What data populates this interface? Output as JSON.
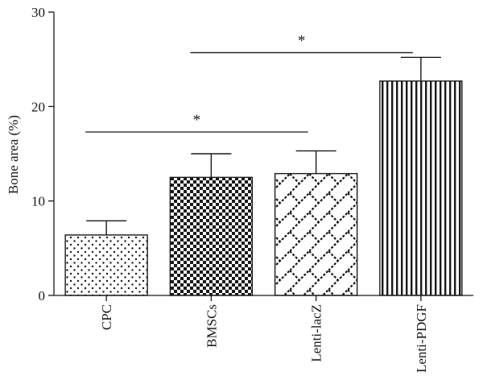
{
  "chart_data": {
    "type": "bar",
    "title": "",
    "xlabel": "",
    "ylabel": "Bone area (%)",
    "ylim": [
      0,
      30
    ],
    "yticks": [
      0,
      10,
      20,
      30
    ],
    "grid": false,
    "categories": [
      "CPC",
      "BMSCs",
      "Lenti-lacZ",
      "Lenti-PDGF"
    ],
    "values": [
      6.4,
      12.5,
      12.9,
      22.7
    ],
    "errors": [
      1.5,
      2.5,
      2.4,
      2.5
    ],
    "patterns": [
      "dots",
      "checker",
      "zigzag",
      "vertical-lines"
    ],
    "significance": [
      {
        "from": "CPC",
        "to": "Lenti-lacZ",
        "y": 17.3,
        "label": "*"
      },
      {
        "from": "BMSCs",
        "to": "Lenti-PDGF",
        "y": 25.7,
        "label": "*"
      }
    ]
  },
  "colors": {
    "bar_outline": "#1a1a1a",
    "pattern_ink": "#1a1a1a",
    "axis": "#1a1a1a"
  }
}
